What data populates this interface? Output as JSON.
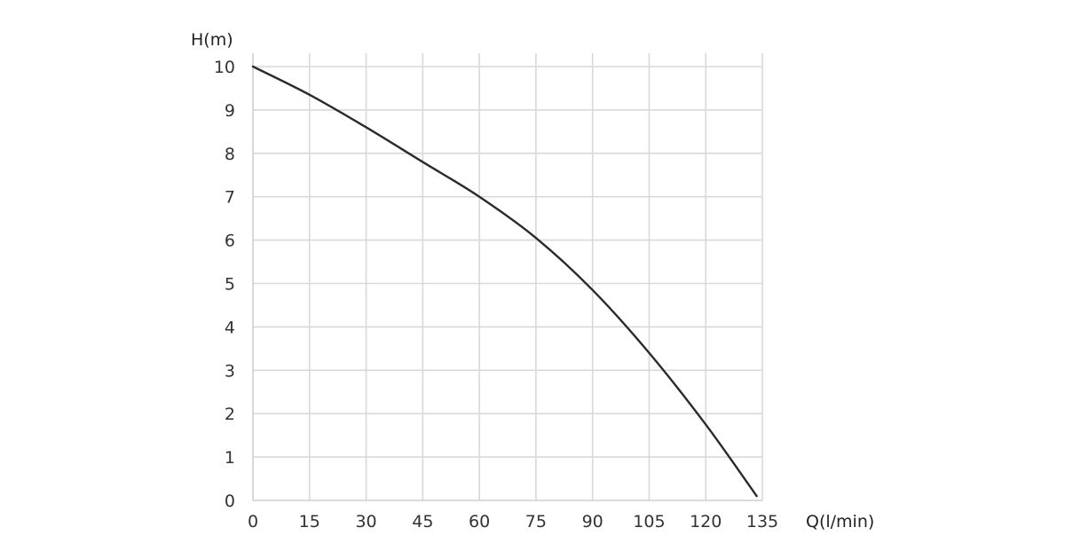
{
  "chart_data": {
    "type": "line",
    "title": "",
    "xlabel": "Q(l/min)",
    "ylabel": "H(m)",
    "xlim": [
      0,
      135
    ],
    "ylim": [
      0,
      10
    ],
    "x_ticks": [
      0,
      15,
      30,
      45,
      60,
      75,
      90,
      105,
      120,
      135
    ],
    "y_ticks": [
      0,
      1,
      2,
      3,
      4,
      5,
      6,
      7,
      8,
      9,
      10
    ],
    "grid": true,
    "legend": "none",
    "series": [
      {
        "x": [
          0,
          15,
          30,
          45,
          60,
          75,
          90,
          105,
          120,
          133.5
        ],
        "y": [
          10,
          9.35,
          8.6,
          7.8,
          7.0,
          6.05,
          4.85,
          3.4,
          1.75,
          0.1
        ],
        "color": "#2b2b2b"
      }
    ]
  }
}
